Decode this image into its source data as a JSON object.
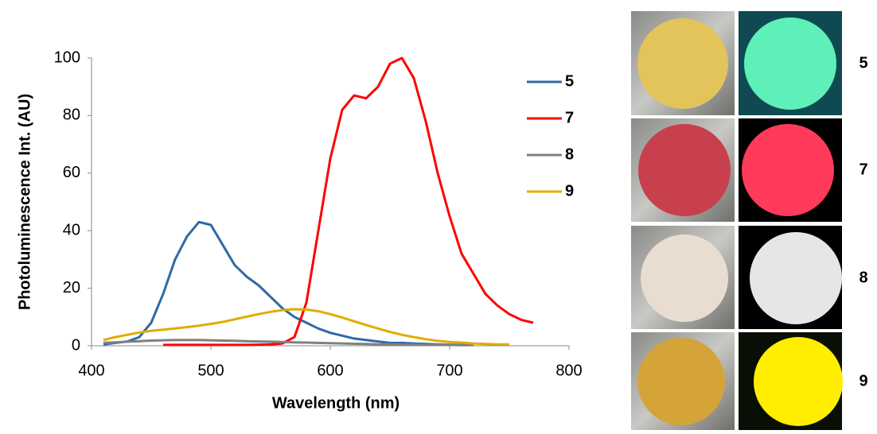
{
  "chart_data": {
    "type": "line",
    "xlabel": "Wavelength  (nm)",
    "ylabel": "Photoluminescence Int. (AU)",
    "x": [
      410,
      420,
      430,
      440,
      450,
      460,
      470,
      480,
      490,
      500,
      510,
      520,
      530,
      540,
      550,
      560,
      570,
      580,
      590,
      600,
      610,
      620,
      630,
      640,
      650,
      660,
      670,
      680,
      690,
      700,
      710,
      720,
      730,
      740,
      750,
      760,
      770
    ],
    "xlim": [
      400,
      800
    ],
    "xticks": [
      400,
      500,
      600,
      700,
      800
    ],
    "ylim": [
      0,
      100
    ],
    "yticks": [
      0,
      20,
      40,
      60,
      80,
      100
    ],
    "grid": false,
    "legend": "right",
    "series": [
      {
        "name": "5",
        "color": "#2e6aa6",
        "values": [
          0.5,
          1,
          1.5,
          3,
          8,
          18,
          30,
          38,
          43,
          42,
          35,
          28,
          24,
          21,
          17,
          13,
          10,
          8,
          6,
          4.5,
          3.5,
          2.5,
          2,
          1.5,
          1,
          1,
          0.8,
          0.6,
          0.5,
          0.4,
          0.3,
          0.3,
          null,
          null,
          null,
          null,
          null
        ]
      },
      {
        "name": "7",
        "color": "#ff0000",
        "values": [
          null,
          null,
          null,
          null,
          null,
          0.3,
          0.3,
          0.3,
          0.3,
          0.3,
          0.3,
          0.3,
          0.3,
          0.4,
          0.5,
          0.8,
          3,
          15,
          40,
          65,
          82,
          87,
          86,
          90,
          98,
          100,
          93,
          78,
          60,
          45,
          32,
          25,
          18,
          14,
          11,
          9,
          8
        ]
      },
      {
        "name": "8",
        "color": "#808080",
        "values": [
          1,
          1.2,
          1.4,
          1.6,
          1.8,
          1.9,
          2,
          2,
          2,
          1.9,
          1.8,
          1.7,
          1.6,
          1.5,
          1.4,
          1.3,
          1.2,
          1.1,
          1,
          0.9,
          0.8,
          0.7,
          0.6,
          0.5,
          0.5,
          0.4,
          0.4,
          0.3,
          0.3,
          0.3,
          0.2,
          0.2,
          null,
          null,
          null,
          null,
          null
        ]
      },
      {
        "name": "9",
        "color": "#e0ac00",
        "values": [
          2,
          3,
          3.8,
          4.6,
          5.2,
          5.6,
          6,
          6.5,
          7,
          7.6,
          8.3,
          9.2,
          10.1,
          11,
          11.8,
          12.4,
          12.7,
          12.6,
          12,
          11,
          9.8,
          8.5,
          7.2,
          6,
          4.8,
          3.8,
          3,
          2.3,
          1.7,
          1.3,
          1.1,
          0.8,
          0.6,
          0.5,
          0.5,
          null,
          null
        ]
      }
    ]
  }
}
